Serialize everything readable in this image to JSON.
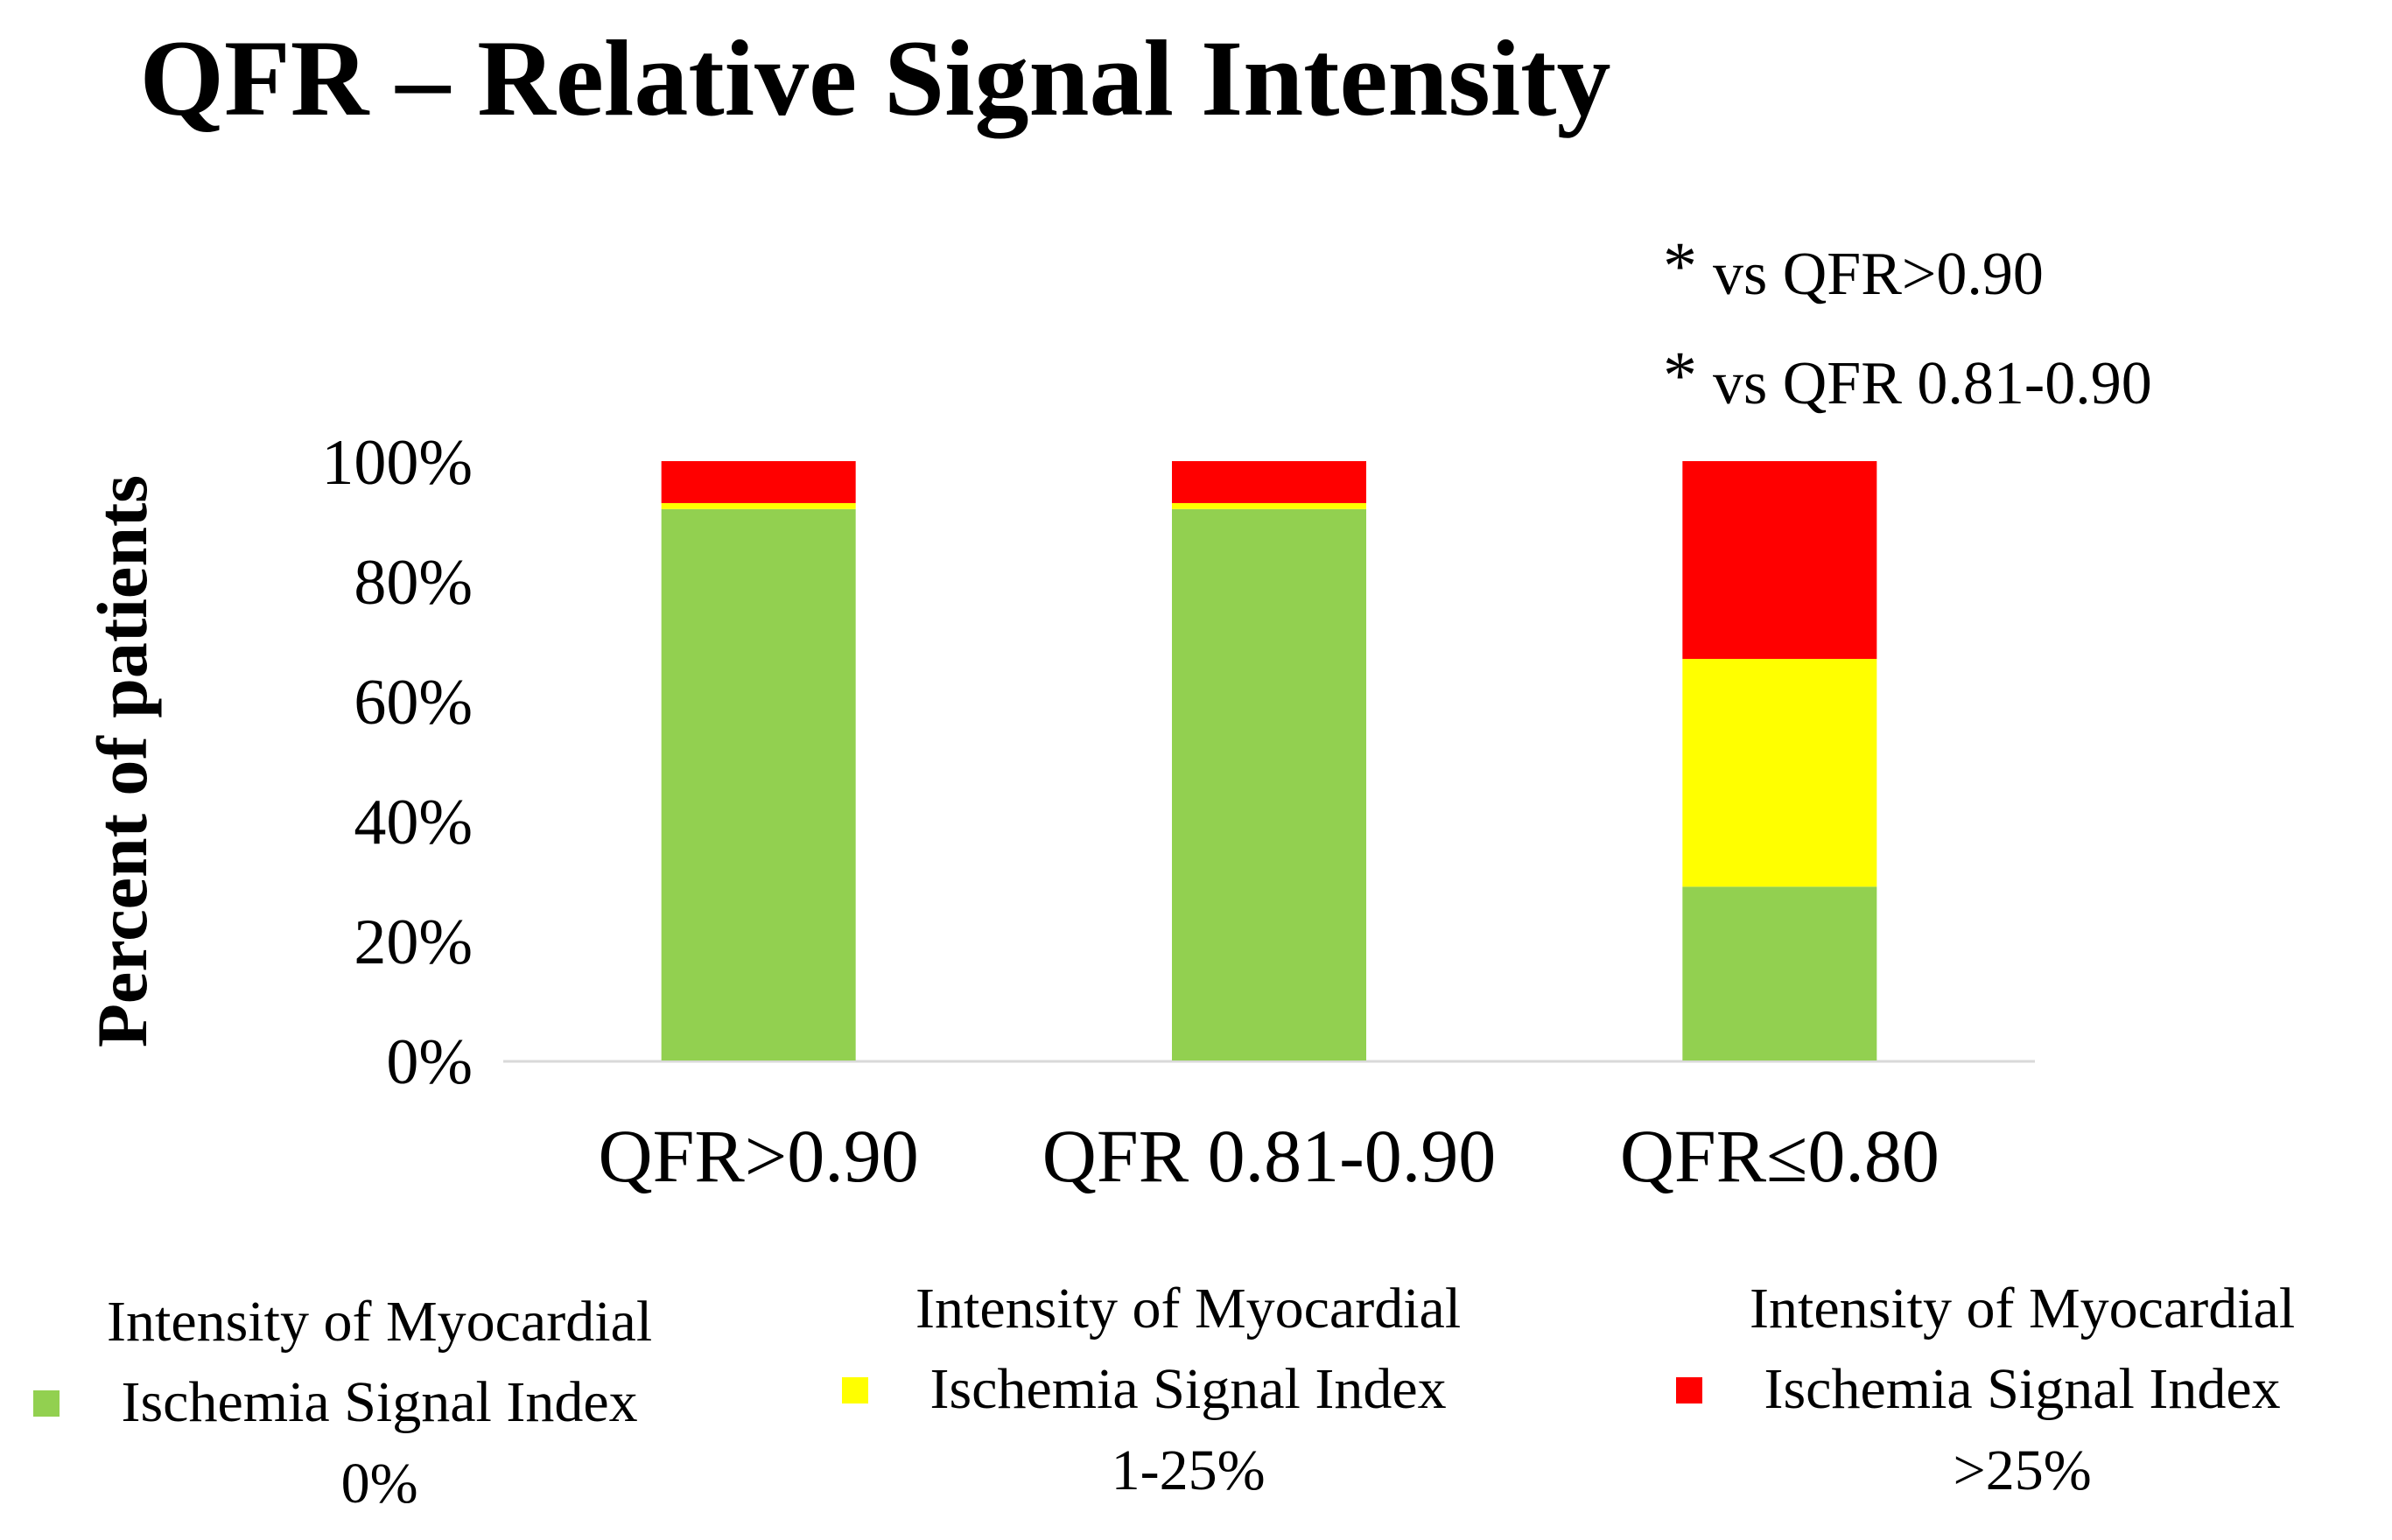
{
  "chart_data": {
    "type": "bar",
    "stacked": true,
    "title": "QFR – Relative Signal Intensity",
    "xlabel": "",
    "ylabel": "Percent of patients",
    "ylim": [
      0,
      100
    ],
    "yticks": [
      "0%",
      "20%",
      "40%",
      "60%",
      "80%",
      "100%"
    ],
    "categories": [
      "QFR>0.90",
      "QFR 0.81-0.90",
      "QFR≤0.80"
    ],
    "series": [
      {
        "name": "Intensity of Myocardial Ischemia Signal Index 0%",
        "color": "#92d050",
        "values": [
          92,
          92,
          29
        ]
      },
      {
        "name": "Intensity of Myocardial Ischemia Signal Index 1-25%",
        "color": "#ffff00",
        "values": [
          1,
          1,
          38
        ]
      },
      {
        "name": "Intensity of Myocardial Ischemia Signal Index >25%",
        "color": "#ff0000",
        "values": [
          7,
          7,
          33
        ]
      }
    ],
    "legend_position": "bottom",
    "annotations": [
      {
        "symbol": "*",
        "text": "vs QFR>0.90"
      },
      {
        "symbol": "*",
        "text": "vs QFR 0.81-0.90"
      }
    ]
  },
  "legend": [
    {
      "lines": [
        "Intensity of Myocardial",
        "Ischemia Signal  Index",
        "0%"
      ],
      "color": "#92d050"
    },
    {
      "lines": [
        "Intensity of Myocardial",
        "Ischemia Signal  Index",
        "1-25%"
      ],
      "color": "#ffff00"
    },
    {
      "lines": [
        "Intensity of Myocardial",
        "Ischemia Signal  Index",
        ">25%"
      ],
      "color": "#ff0000"
    }
  ]
}
